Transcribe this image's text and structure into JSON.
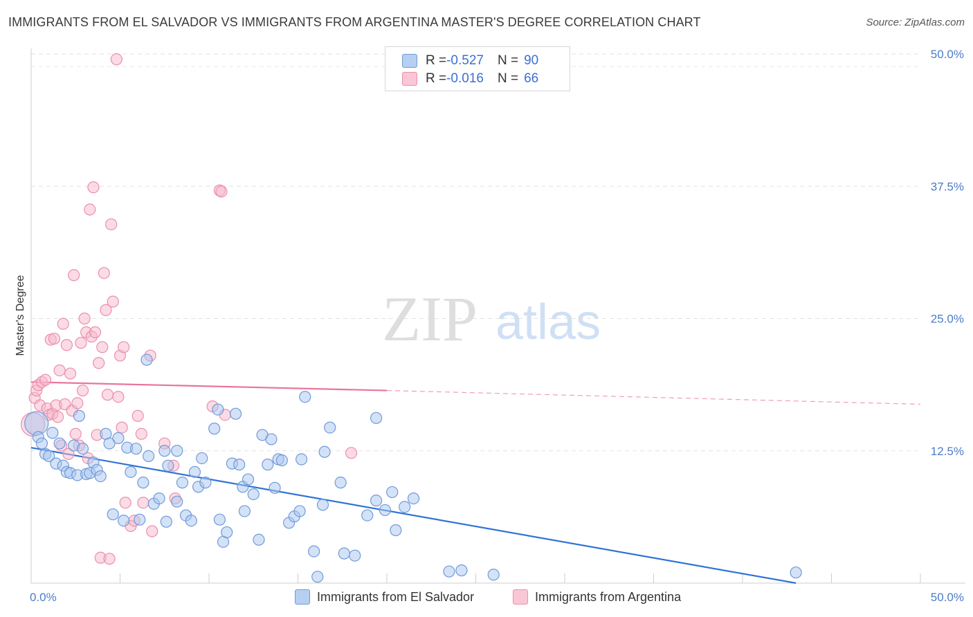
{
  "title": "IMMIGRANTS FROM EL SALVADOR VS IMMIGRANTS FROM ARGENTINA MASTER'S DEGREE CORRELATION CHART",
  "source": "Source: ZipAtlas.com",
  "watermark": {
    "zip": "ZIP",
    "atlas": "atlas"
  },
  "legend": {
    "rows": [
      {
        "r_label": "R = ",
        "r_value": "-0.527",
        "n_label": "N = ",
        "n_value": "90"
      },
      {
        "r_label": "R = ",
        "r_value": "-0.016",
        "n_label": "N = ",
        "n_value": "66"
      }
    ]
  },
  "bottom_legend": {
    "series1": "Immigrants from El Salvador",
    "series2": "Immigrants from Argentina"
  },
  "colors": {
    "blue_fill": "#a9c6f0",
    "blue_stroke": "#6f9ad8",
    "blue_line": "#2f73d4",
    "pink_fill": "#f7b8cb",
    "pink_stroke": "#ea8fab",
    "pink_line": "#e8739b",
    "axis_text": "#4a7cc9"
  },
  "chart_data": {
    "type": "scatter",
    "title": "IMMIGRANTS FROM EL SALVADOR VS IMMIGRANTS FROM ARGENTINA MASTER'S DEGREE CORRELATION CHART",
    "xlabel": "",
    "ylabel": "Master's Degree",
    "xlim": [
      0,
      50
    ],
    "ylim": [
      0,
      50
    ],
    "x_tick_labels": [
      "0.0%",
      "50.0%"
    ],
    "y_tick_labels": [
      "12.5%",
      "25.0%",
      "37.5%",
      "50.0%"
    ],
    "y_ticks": [
      12.5,
      25.0,
      37.5,
      50.0
    ],
    "grid": "horizontal dashed",
    "legend_position": "top-center",
    "series": [
      {
        "name": "Immigrants from El Salvador",
        "color": "#a9c6f0",
        "trend": {
          "x": [
            0,
            43
          ],
          "y": [
            12.8,
            0
          ],
          "dashed_to": null
        },
        "points": [
          [
            0.3,
            15.1
          ],
          [
            0.4,
            13.8
          ],
          [
            0.6,
            13.2
          ],
          [
            0.8,
            12.2
          ],
          [
            1.0,
            12.0
          ],
          [
            1.2,
            14.2
          ],
          [
            1.4,
            11.3
          ],
          [
            1.6,
            13.2
          ],
          [
            1.8,
            11.1
          ],
          [
            2.0,
            10.5
          ],
          [
            2.2,
            10.4
          ],
          [
            2.4,
            13.0
          ],
          [
            2.6,
            10.2
          ],
          [
            2.7,
            15.8
          ],
          [
            2.9,
            12.7
          ],
          [
            3.1,
            10.3
          ],
          [
            3.3,
            10.4
          ],
          [
            3.5,
            11.4
          ],
          [
            3.7,
            10.7
          ],
          [
            3.9,
            10.1
          ],
          [
            4.2,
            14.1
          ],
          [
            4.4,
            13.2
          ],
          [
            4.6,
            6.5
          ],
          [
            4.9,
            13.7
          ],
          [
            5.2,
            5.9
          ],
          [
            5.4,
            12.8
          ],
          [
            5.6,
            10.5
          ],
          [
            5.9,
            12.7
          ],
          [
            6.1,
            6.0
          ],
          [
            6.3,
            9.5
          ],
          [
            6.5,
            21.1
          ],
          [
            6.6,
            12.0
          ],
          [
            6.9,
            7.5
          ],
          [
            7.2,
            8.0
          ],
          [
            7.5,
            12.5
          ],
          [
            7.6,
            5.8
          ],
          [
            7.7,
            11.1
          ],
          [
            8.2,
            7.7
          ],
          [
            8.2,
            12.5
          ],
          [
            8.5,
            9.5
          ],
          [
            8.7,
            6.4
          ],
          [
            9.0,
            5.9
          ],
          [
            9.2,
            10.5
          ],
          [
            9.4,
            9.1
          ],
          [
            9.6,
            11.8
          ],
          [
            9.8,
            9.5
          ],
          [
            10.3,
            14.6
          ],
          [
            10.5,
            16.4
          ],
          [
            10.6,
            6.0
          ],
          [
            10.8,
            3.9
          ],
          [
            11.0,
            4.8
          ],
          [
            11.3,
            11.3
          ],
          [
            11.5,
            16.0
          ],
          [
            11.7,
            11.2
          ],
          [
            11.9,
            9.1
          ],
          [
            12.0,
            6.8
          ],
          [
            12.2,
            9.8
          ],
          [
            12.5,
            8.4
          ],
          [
            12.8,
            4.1
          ],
          [
            13.0,
            14.0
          ],
          [
            13.3,
            11.2
          ],
          [
            13.5,
            13.6
          ],
          [
            13.7,
            9.0
          ],
          [
            13.9,
            11.7
          ],
          [
            14.1,
            11.6
          ],
          [
            14.5,
            5.7
          ],
          [
            14.8,
            6.3
          ],
          [
            15.1,
            6.8
          ],
          [
            15.2,
            11.7
          ],
          [
            15.4,
            17.6
          ],
          [
            15.9,
            3.0
          ],
          [
            16.1,
            0.6
          ],
          [
            16.4,
            7.4
          ],
          [
            16.5,
            12.4
          ],
          [
            16.8,
            14.7
          ],
          [
            17.4,
            9.5
          ],
          [
            17.6,
            2.8
          ],
          [
            18.2,
            2.6
          ],
          [
            18.9,
            6.4
          ],
          [
            19.4,
            7.8
          ],
          [
            19.4,
            15.6
          ],
          [
            19.9,
            6.9
          ],
          [
            20.3,
            8.6
          ],
          [
            20.5,
            5.0
          ],
          [
            21.0,
            7.2
          ],
          [
            21.5,
            8.0
          ],
          [
            23.5,
            1.1
          ],
          [
            24.2,
            1.2
          ],
          [
            26.0,
            0.8
          ],
          [
            43.0,
            1.0
          ]
        ]
      },
      {
        "name": "Immigrants from Argentina",
        "color": "#f7b8cb",
        "trend": {
          "x": [
            0,
            20
          ],
          "y": [
            19.0,
            18.2
          ],
          "dashed_to": {
            "x": 50,
            "y": 16.9
          }
        },
        "points": [
          [
            0.1,
            15.0
          ],
          [
            0.2,
            17.5
          ],
          [
            0.3,
            18.2
          ],
          [
            0.4,
            18.7
          ],
          [
            0.5,
            16.8
          ],
          [
            0.6,
            19.0
          ],
          [
            0.8,
            19.2
          ],
          [
            0.9,
            16.5
          ],
          [
            1.0,
            15.9
          ],
          [
            1.1,
            23.0
          ],
          [
            1.2,
            16.0
          ],
          [
            1.3,
            23.1
          ],
          [
            1.4,
            16.8
          ],
          [
            1.5,
            15.7
          ],
          [
            1.6,
            20.1
          ],
          [
            1.7,
            13.0
          ],
          [
            1.8,
            24.5
          ],
          [
            1.9,
            16.9
          ],
          [
            2.0,
            22.5
          ],
          [
            2.1,
            12.2
          ],
          [
            2.2,
            19.8
          ],
          [
            2.3,
            16.3
          ],
          [
            2.4,
            29.1
          ],
          [
            2.5,
            14.1
          ],
          [
            2.6,
            17.0
          ],
          [
            2.7,
            13.0
          ],
          [
            2.8,
            22.7
          ],
          [
            2.9,
            18.2
          ],
          [
            3.0,
            25.0
          ],
          [
            3.1,
            23.7
          ],
          [
            3.2,
            11.8
          ],
          [
            3.3,
            35.3
          ],
          [
            3.4,
            23.3
          ],
          [
            3.5,
            37.4
          ],
          [
            3.6,
            23.7
          ],
          [
            3.7,
            14.0
          ],
          [
            3.8,
            20.8
          ],
          [
            3.9,
            2.4
          ],
          [
            4.0,
            22.3
          ],
          [
            4.1,
            29.3
          ],
          [
            4.2,
            25.8
          ],
          [
            4.3,
            17.8
          ],
          [
            4.4,
            2.3
          ],
          [
            4.5,
            33.9
          ],
          [
            4.6,
            26.6
          ],
          [
            4.8,
            49.5
          ],
          [
            4.9,
            17.6
          ],
          [
            5.0,
            21.5
          ],
          [
            5.1,
            14.7
          ],
          [
            5.2,
            22.3
          ],
          [
            5.3,
            7.6
          ],
          [
            5.6,
            5.4
          ],
          [
            5.8,
            5.9
          ],
          [
            6.0,
            15.8
          ],
          [
            6.2,
            14.1
          ],
          [
            6.3,
            7.6
          ],
          [
            6.7,
            21.5
          ],
          [
            6.8,
            4.9
          ],
          [
            7.5,
            13.2
          ],
          [
            8.1,
            8.0
          ],
          [
            8.0,
            11.1
          ],
          [
            10.2,
            16.7
          ],
          [
            10.6,
            37.1
          ],
          [
            10.7,
            37.0
          ],
          [
            10.9,
            15.9
          ],
          [
            18.0,
            12.3
          ]
        ]
      }
    ]
  }
}
